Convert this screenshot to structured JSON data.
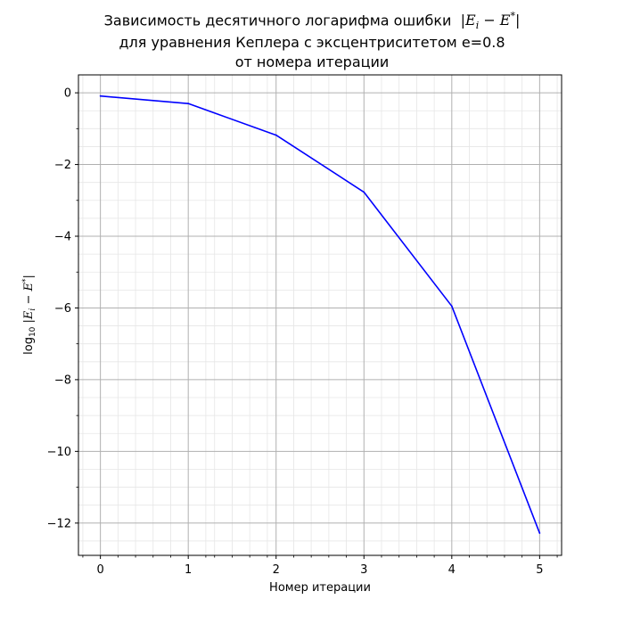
{
  "title": {
    "line1": "Зависимость десятичного логарифма ошибки",
    "line1_math": "|E_i − E*|",
    "line2": "для уравнения Кеплера с эксцентриситетом e=0.8",
    "line3": "от номера итерации"
  },
  "chart_data": {
    "type": "line",
    "title": "Зависимость десятичного логарифма ошибки |E_i − E*| для уравнения Кеплера с эксцентриситетом e=0.8 от номера итерации",
    "xlabel": "Номер итерации",
    "ylabel": "log10 |E_i − E*|",
    "x": [
      0,
      1,
      2,
      3,
      4,
      5
    ],
    "series": [
      {
        "values": [
          -0.09,
          -0.3,
          -1.18,
          -2.77,
          -5.95,
          -12.28
        ],
        "color": "#0000ff"
      }
    ],
    "xlim": [
      -0.25,
      5.25
    ],
    "ylim": [
      -12.9,
      0.5
    ],
    "xticks": [
      0,
      1,
      2,
      3,
      4,
      5
    ],
    "xtick_labels": [
      "0",
      "1",
      "2",
      "3",
      "4",
      "5"
    ],
    "yticks": [
      0,
      -2,
      -4,
      -6,
      -8,
      -10,
      -12
    ],
    "ytick_labels": [
      "0",
      "−2",
      "−4",
      "−6",
      "−8",
      "−10",
      "−12"
    ],
    "grid": true,
    "minor_grid": true
  }
}
